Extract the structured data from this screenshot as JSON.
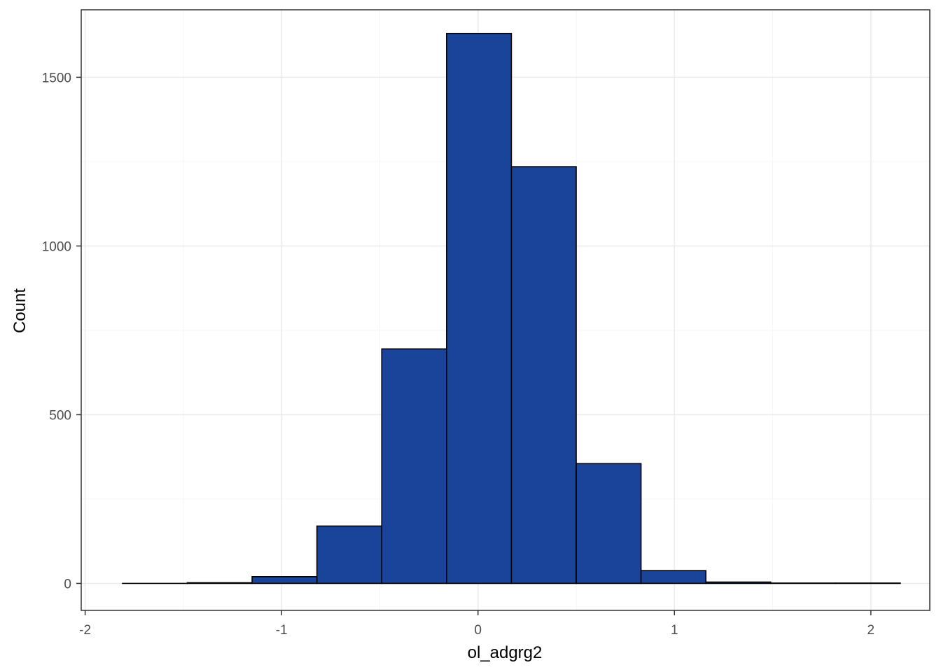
{
  "chart_data": {
    "type": "histogram",
    "xlabel": "ol_adgrg2",
    "ylabel": "Count",
    "xlim": [
      -2.02,
      2.3
    ],
    "ylim": [
      -80,
      1700
    ],
    "x_ticks": [
      -2,
      -1,
      0,
      1,
      2
    ],
    "x_tick_labels": [
      "-2",
      "-1",
      "0",
      "1",
      "2"
    ],
    "y_ticks": [
      0,
      500,
      1000,
      1500
    ],
    "y_tick_labels": [
      "0",
      "500",
      "1000",
      "1500"
    ],
    "y_minor_ticks": [
      250,
      750,
      1250
    ],
    "x_minor_ticks": [
      -1.5,
      -0.5,
      0.5,
      1.5
    ],
    "bin_width": 0.33,
    "bins": [
      {
        "x_min": -1.81,
        "x_max": -1.48,
        "count": 0
      },
      {
        "x_min": -1.48,
        "x_max": -1.15,
        "count": 2
      },
      {
        "x_min": -1.15,
        "x_max": -0.82,
        "count": 20
      },
      {
        "x_min": -0.82,
        "x_max": -0.49,
        "count": 170
      },
      {
        "x_min": -0.49,
        "x_max": -0.16,
        "count": 695
      },
      {
        "x_min": -0.16,
        "x_max": 0.17,
        "count": 1630
      },
      {
        "x_min": 0.17,
        "x_max": 0.5,
        "count": 1235
      },
      {
        "x_min": 0.5,
        "x_max": 0.83,
        "count": 355
      },
      {
        "x_min": 0.83,
        "x_max": 1.16,
        "count": 38
      },
      {
        "x_min": 1.16,
        "x_max": 1.49,
        "count": 4
      },
      {
        "x_min": 1.49,
        "x_max": 1.82,
        "count": 1
      },
      {
        "x_min": 1.82,
        "x_max": 2.15,
        "count": 1
      }
    ],
    "grid": true,
    "colors": {
      "bar_fill": "#1a4499",
      "bar_stroke": "#000000",
      "grid_major": "#ebebeb",
      "grid_minor": "#f5f5f5",
      "panel_border": "#333333",
      "tick_text": "#4d4d4d"
    }
  }
}
